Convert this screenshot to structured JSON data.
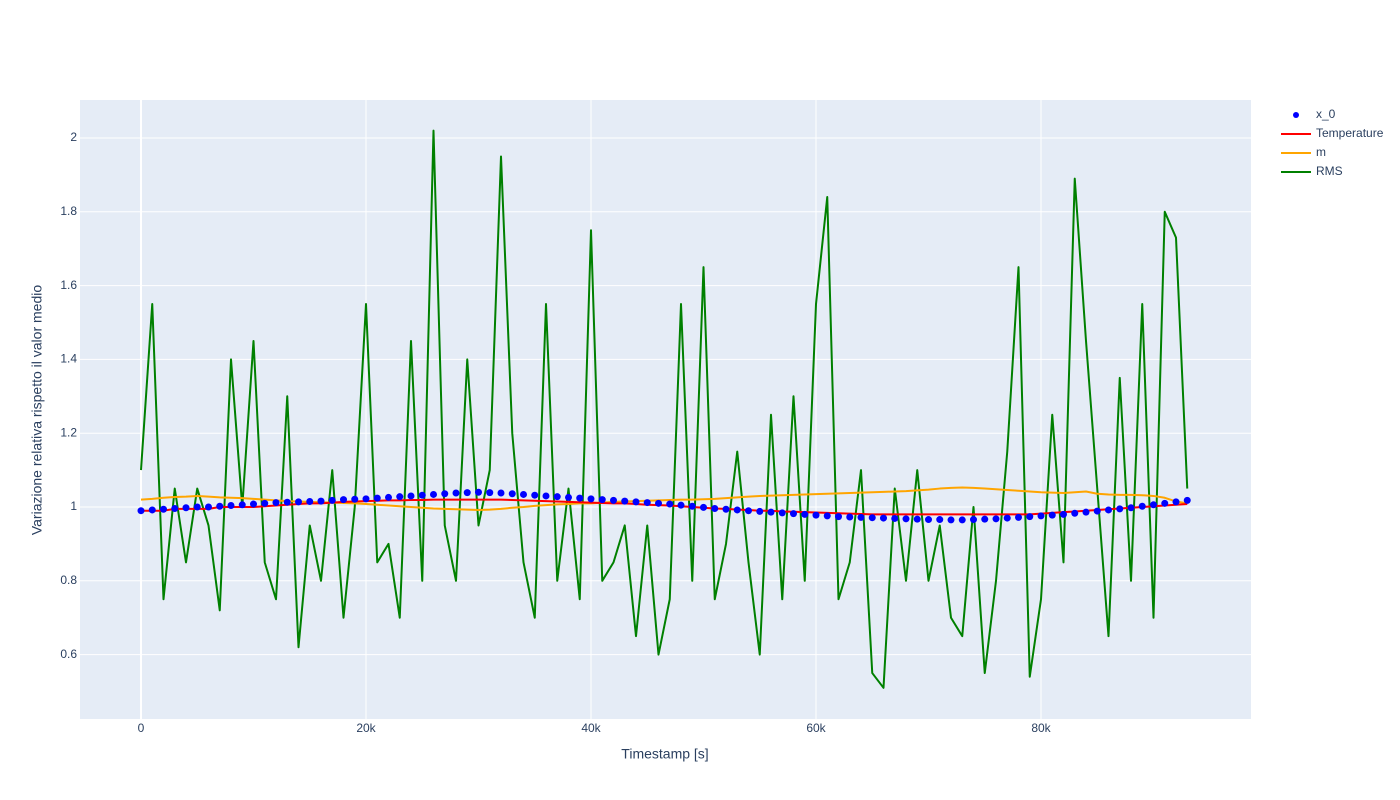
{
  "chart_data": {
    "type": "line",
    "xlabel": "Timestamp [s]",
    "ylabel": "Variazione relativa rispetto il valor medio",
    "xlim": [
      -5422,
      98667
    ],
    "ylim": [
      0.4255,
      2.103
    ],
    "xticks": [
      0,
      {
        "value": 20000,
        "label": "20k"
      },
      {
        "value": 40000,
        "label": "40k"
      },
      {
        "value": 60000,
        "label": "60k"
      },
      {
        "value": 80000,
        "label": "80k"
      }
    ],
    "yticks": [
      0.6,
      0.8,
      1,
      1.2,
      1.4,
      1.6,
      1.8,
      2
    ],
    "grid": true,
    "legend": "outside-right",
    "x": [
      0,
      1000,
      2000,
      3000,
      4000,
      5000,
      6000,
      7000,
      8000,
      9000,
      10000,
      11000,
      12000,
      13000,
      14000,
      15000,
      16000,
      17000,
      18000,
      19000,
      20000,
      21000,
      22000,
      23000,
      24000,
      25000,
      26000,
      27000,
      28000,
      29000,
      30000,
      31000,
      32000,
      33000,
      34000,
      35000,
      36000,
      37000,
      38000,
      39000,
      40000,
      41000,
      42000,
      43000,
      44000,
      45000,
      46000,
      47000,
      48000,
      49000,
      50000,
      51000,
      52000,
      53000,
      54000,
      55000,
      56000,
      57000,
      58000,
      59000,
      60000,
      61000,
      62000,
      63000,
      64000,
      65000,
      66000,
      67000,
      68000,
      69000,
      70000,
      71000,
      72000,
      73000,
      74000,
      75000,
      76000,
      77000,
      78000,
      79000,
      80000,
      81000,
      82000,
      83000,
      84000,
      85000,
      86000,
      87000,
      88000,
      89000,
      90000,
      91000,
      92000,
      93000
    ],
    "series": [
      {
        "name": "x_0",
        "color": "#0000ff",
        "mode": "markers",
        "values": [
          0.99,
          0.992,
          0.994,
          0.996,
          0.998,
          1,
          1,
          1.002,
          1.004,
          1.006,
          1.008,
          1.01,
          1.012,
          1.013,
          1.014,
          1.015,
          1.016,
          1.018,
          1.02,
          1.021,
          1.022,
          1.024,
          1.026,
          1.028,
          1.03,
          1.032,
          1.034,
          1.036,
          1.038,
          1.039,
          1.04,
          1.039,
          1.038,
          1.036,
          1.034,
          1.032,
          1.03,
          1.028,
          1.026,
          1.024,
          1.022,
          1.02,
          1.018,
          1.016,
          1.014,
          1.012,
          1.01,
          1.008,
          1.005,
          1.002,
          0.999,
          0.996,
          0.994,
          0.992,
          0.99,
          0.988,
          0.986,
          0.984,
          0.982,
          0.98,
          0.978,
          0.976,
          0.974,
          0.973,
          0.972,
          0.971,
          0.97,
          0.969,
          0.968,
          0.967,
          0.966,
          0.966,
          0.965,
          0.965,
          0.966,
          0.967,
          0.968,
          0.97,
          0.972,
          0.974,
          0.976,
          0.978,
          0.98,
          0.983,
          0.986,
          0.989,
          0.992,
          0.995,
          0.998,
          1.002,
          1.006,
          1.01,
          1.014,
          1.018
        ]
      },
      {
        "name": "Temperature",
        "color": "#ff0000",
        "mode": "lines",
        "values": [
          0.99,
          0.99,
          0.99,
          0.995,
          0.995,
          0.995,
          0.995,
          1,
          1,
          1,
          1,
          1.002,
          1.004,
          1.006,
          1.008,
          1.01,
          1.01,
          1.012,
          1.014,
          1.015,
          1.016,
          1.017,
          1.018,
          1.018,
          1.019,
          1.019,
          1.02,
          1.02,
          1.02,
          1.02,
          1.02,
          1.02,
          1.02,
          1.019,
          1.018,
          1.017,
          1.016,
          1.015,
          1.014,
          1.013,
          1.012,
          1.011,
          1.01,
          1.01,
          1.008,
          1.006,
          1.005,
          1.004,
          1.002,
          1,
          0.998,
          0.996,
          0.995,
          0.993,
          0.992,
          0.99,
          0.99,
          0.988,
          0.987,
          0.986,
          0.985,
          0.984,
          0.983,
          0.982,
          0.981,
          0.98,
          0.98,
          0.98,
          0.98,
          0.98,
          0.98,
          0.98,
          0.98,
          0.98,
          0.98,
          0.98,
          0.98,
          0.98,
          0.98,
          0.98,
          0.982,
          0.984,
          0.986,
          0.988,
          0.99,
          0.992,
          0.994,
          0.996,
          0.998,
          1,
          1.002,
          1.004,
          1.006,
          1.008
        ]
      },
      {
        "name": "m",
        "color": "#ffa500",
        "mode": "lines",
        "values": [
          1.02,
          1.022,
          1.025,
          1.027,
          1.028,
          1.03,
          1.028,
          1.026,
          1.025,
          1.024,
          1.022,
          1.02,
          1.018,
          1.016,
          1.015,
          1.014,
          1.013,
          1.012,
          1.011,
          1.01,
          1.008,
          1.006,
          1.004,
          1.002,
          1.0,
          0.998,
          0.996,
          0.995,
          0.994,
          0.993,
          0.992,
          0.993,
          0.995,
          0.998,
          1.0,
          1.003,
          1.005,
          1.007,
          1.008,
          1.01,
          1.01,
          1.012,
          1.014,
          1.015,
          1.016,
          1.017,
          1.018,
          1.019,
          1.02,
          1.02,
          1.021,
          1.022,
          1.024,
          1.026,
          1.028,
          1.03,
          1.031,
          1.032,
          1.033,
          1.034,
          1.035,
          1.036,
          1.037,
          1.038,
          1.039,
          1.04,
          1.041,
          1.042,
          1.043,
          1.045,
          1.047,
          1.05,
          1.052,
          1.053,
          1.052,
          1.05,
          1.048,
          1.046,
          1.044,
          1.042,
          1.04,
          1.039,
          1.038,
          1.04,
          1.042,
          1.036,
          1.034,
          1.033,
          1.033,
          1.032,
          1.03,
          1.025,
          1.015,
          1.01
        ]
      },
      {
        "name": "RMS",
        "color": "#008000",
        "mode": "lines",
        "values": [
          1.1,
          1.55,
          0.75,
          1.05,
          0.85,
          1.05,
          0.95,
          0.72,
          1.4,
          1.0,
          1.45,
          0.85,
          0.75,
          1.3,
          0.62,
          0.95,
          0.8,
          1.1,
          0.7,
          1.0,
          1.55,
          0.85,
          0.9,
          0.7,
          1.45,
          0.8,
          2.02,
          0.95,
          0.8,
          1.4,
          0.95,
          1.1,
          1.95,
          1.2,
          0.85,
          0.7,
          1.55,
          0.8,
          1.05,
          0.75,
          1.75,
          0.8,
          0.85,
          0.95,
          0.65,
          0.95,
          0.6,
          0.75,
          1.55,
          0.8,
          1.65,
          0.75,
          0.9,
          1.15,
          0.85,
          0.6,
          1.25,
          0.75,
          1.3,
          0.8,
          1.55,
          1.84,
          0.75,
          0.85,
          1.1,
          0.55,
          0.51,
          1.05,
          0.8,
          1.1,
          0.8,
          0.95,
          0.7,
          0.65,
          1.0,
          0.55,
          0.8,
          1.15,
          1.65,
          0.54,
          0.75,
          1.25,
          0.85,
          1.89,
          1.45,
          1.05,
          0.65,
          1.35,
          0.8,
          1.55,
          0.7,
          1.8,
          1.73,
          1.05
        ]
      }
    ]
  }
}
